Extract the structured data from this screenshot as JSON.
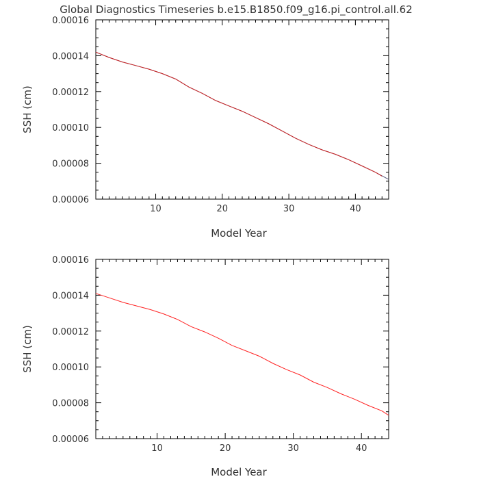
{
  "title": "Global Diagnostics Timeseries b.e15.B1850.f09_g16.pi_control.all.62",
  "chart_data": [
    {
      "type": "line",
      "title": "",
      "xlabel": "Model Year",
      "ylabel": "SSH (cm)",
      "xlim": [
        1,
        45
      ],
      "ylim": [
        6e-05,
        0.00016
      ],
      "xticks": [
        10,
        20,
        30,
        40
      ],
      "xtick_labels": [
        "10",
        "20",
        "30",
        "40"
      ],
      "yticks": [
        6e-05,
        8e-05,
        0.0001,
        0.00012,
        0.00014,
        0.00016
      ],
      "ytick_labels": [
        "0.00006",
        "0.00008",
        "0.00010",
        "0.00012",
        "0.00014",
        "0.00016"
      ],
      "grid": false,
      "series": [
        {
          "color": "#555577",
          "x": [
            1,
            3,
            5,
            7,
            9,
            11,
            13,
            15,
            17,
            19,
            21,
            23,
            25,
            27,
            29,
            31,
            33,
            35,
            37,
            39,
            41,
            43,
            45
          ],
          "y": [
            0.000142,
            0.000139,
            0.0001365,
            0.0001345,
            0.0001325,
            0.00013,
            0.000127,
            0.0001225,
            0.000119,
            0.000115,
            0.000112,
            0.000109,
            0.0001055,
            0.000102,
            9.8e-05,
            9.4e-05,
            9.05e-05,
            8.75e-05,
            8.5e-05,
            8.2e-05,
            7.85e-05,
            7.5e-05,
            7.1e-05
          ]
        },
        {
          "color": "#cc2222",
          "x": [
            1,
            3,
            5,
            7,
            9,
            11,
            13,
            15,
            17,
            19,
            21,
            23,
            25,
            27,
            29,
            31,
            33,
            35,
            37,
            39,
            41,
            43,
            44
          ],
          "y": [
            0.000142,
            0.000139,
            0.0001365,
            0.0001345,
            0.0001325,
            0.00013,
            0.000127,
            0.0001225,
            0.000119,
            0.000115,
            0.000112,
            0.000109,
            0.0001055,
            0.000102,
            9.8e-05,
            9.4e-05,
            9.05e-05,
            8.75e-05,
            8.5e-05,
            8.2e-05,
            7.85e-05,
            7.5e-05,
            7.28e-05
          ]
        }
      ]
    },
    {
      "type": "line",
      "title": "",
      "xlabel": "Model Year",
      "ylabel": "SSH (cm)",
      "xlim": [
        1,
        44
      ],
      "ylim": [
        6e-05,
        0.00016
      ],
      "xticks": [
        10,
        20,
        30,
        40
      ],
      "xtick_labels": [
        "10",
        "20",
        "30",
        "40"
      ],
      "yticks": [
        6e-05,
        8e-05,
        0.0001,
        0.00012,
        0.00014,
        0.00016
      ],
      "ytick_labels": [
        "0.00006",
        "0.00008",
        "0.00010",
        "0.00012",
        "0.00014",
        "0.00016"
      ],
      "grid": false,
      "series": [
        {
          "color": "#ff2222",
          "x": [
            1,
            3,
            5,
            7,
            9,
            11,
            13,
            15,
            17,
            19,
            21,
            23,
            25,
            27,
            29,
            31,
            33,
            35,
            37,
            39,
            41,
            43,
            44
          ],
          "y": [
            0.000141,
            0.0001385,
            0.000136,
            0.000134,
            0.000132,
            0.0001295,
            0.0001265,
            0.0001225,
            0.0001195,
            0.000116,
            0.000112,
            0.000109,
            0.000106,
            0.000102,
            9.85e-05,
            9.55e-05,
            9.15e-05,
            8.85e-05,
            8.5e-05,
            8.2e-05,
            7.85e-05,
            7.55e-05,
            7.3e-05
          ]
        }
      ]
    }
  ]
}
